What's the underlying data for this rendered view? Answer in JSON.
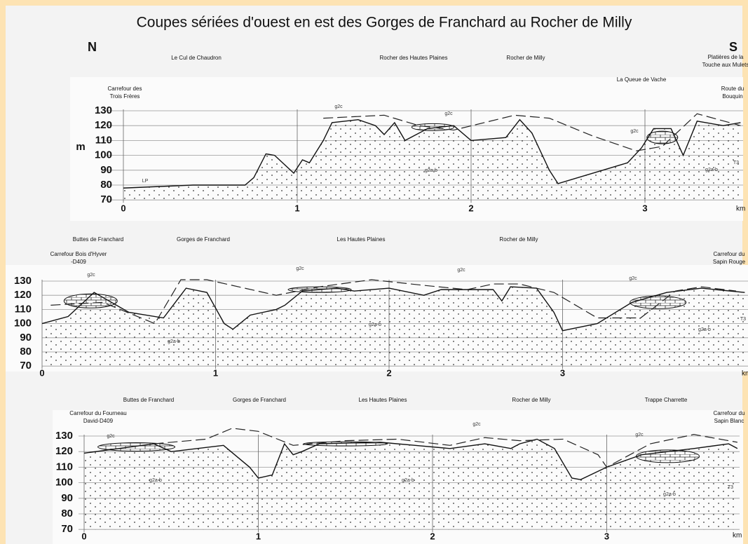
{
  "title": "Coupes sériées d'ouest en est des Gorges de Franchard au Rocher de Milly",
  "north": "N",
  "south": "S",
  "panels": [
    {
      "labels": [
        [
          "Le Cul de Chaudron"
        ],
        [
          "Rocher des Hautes Plaines"
        ],
        [
          "Rocher de Milly"
        ],
        [
          "Platières de la",
          "Touche aux Mulets"
        ],
        [
          "La Queue de Vache"
        ],
        [
          "Carrefour des",
          "Trois Frères"
        ],
        [
          "Route du",
          "Bouquin"
        ]
      ],
      "geology": [
        "g2c",
        "g2c",
        "g2c",
        "g2a-b",
        "g2a-b",
        "LP",
        "T3"
      ],
      "y_unit": "m",
      "y_ticks": [
        130,
        120,
        110,
        100,
        90,
        80,
        70
      ],
      "x_ticks": [
        0,
        1,
        2,
        3
      ],
      "x_unit": "km"
    },
    {
      "labels": [
        [
          "Buttes de Franchard"
        ],
        [
          "Gorges de Franchard"
        ],
        [
          "Les Hautes Plaines"
        ],
        [
          "Rocher de Milly"
        ],
        [
          "Carrefour Bois d'Hyver",
          "-D409"
        ],
        [
          "Carrefour du",
          "Sapin Rouge"
        ]
      ],
      "geology": [
        "g2c",
        "g2c",
        "g2c",
        "g2c",
        "g2a-b",
        "g2a-b",
        "g2a-b",
        "T3"
      ],
      "y_ticks": [
        130,
        120,
        110,
        100,
        90,
        80,
        70
      ],
      "x_ticks": [
        0,
        1,
        2,
        3
      ],
      "x_unit": "km"
    },
    {
      "labels": [
        [
          "Buttes de Franchard"
        ],
        [
          "Gorges de Franchard"
        ],
        [
          "Les  Hautes Plaines"
        ],
        [
          "Rocher de Milly"
        ],
        [
          "Trappe Charrette"
        ],
        [
          "Carrefour du Fourneau",
          "David-D409"
        ],
        [
          "Carrefour du",
          "Sapin Blanc"
        ]
      ],
      "geology": [
        "g2c",
        "g2c",
        "g2c",
        "g2a-b",
        "g2a-b",
        "g2a-b",
        "T3"
      ],
      "y_ticks": [
        130,
        120,
        110,
        100,
        90,
        80,
        70
      ],
      "x_ticks": [
        0,
        1,
        2,
        3
      ],
      "x_unit": "km"
    }
  ]
}
